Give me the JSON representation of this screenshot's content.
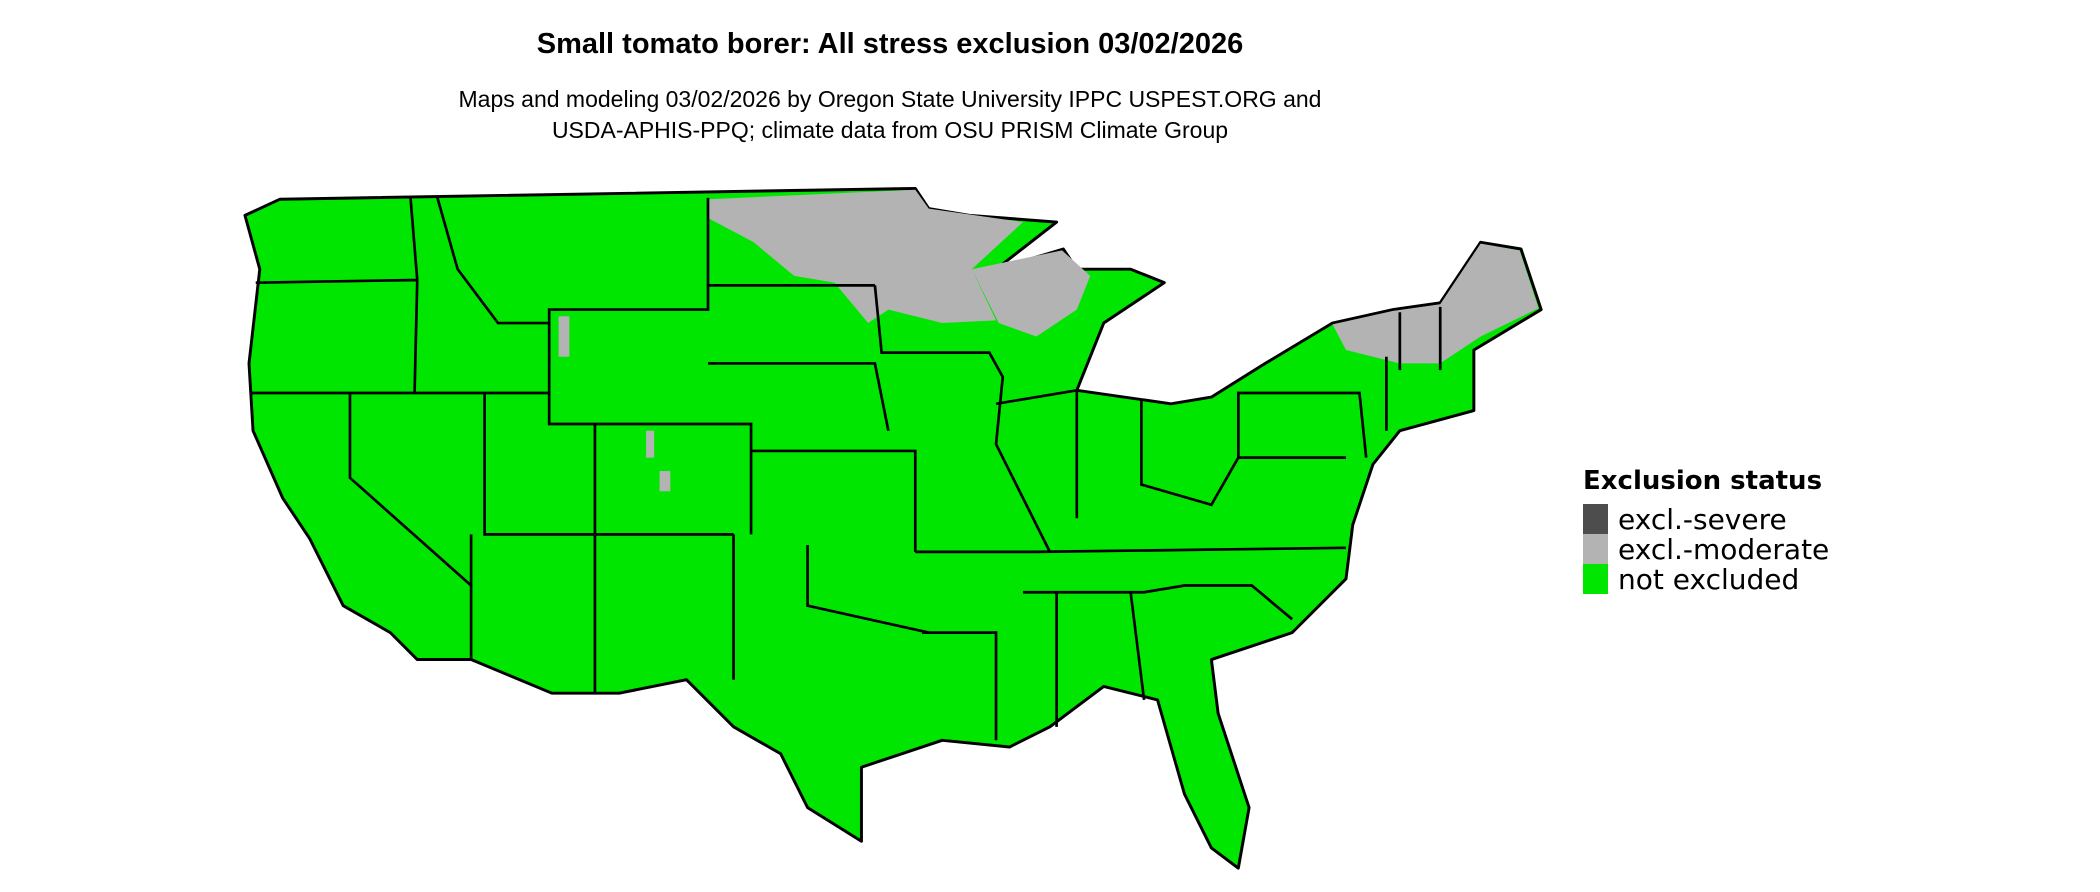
{
  "title": "Small tomato borer: All stress exclusion 03/02/2026",
  "subtitle_line1": "Maps and modeling 03/02/2026 by Oregon State University IPPC USPEST.ORG and",
  "subtitle_line2": "USDA-APHIS-PPQ; climate data from OSU PRISM Climate Group",
  "legend": {
    "title": "Exclusion status",
    "items": [
      {
        "label": "excl.-severe",
        "color": "#4d4d4d"
      },
      {
        "label": "excl.-moderate",
        "color": "#b3b3b3"
      },
      {
        "label": "not excluded",
        "color": "#00e600"
      }
    ]
  },
  "colors": {
    "not_excluded": "#00e600",
    "moderate": "#b3b3b3",
    "severe": "#4d4d4d",
    "borders": "#000000"
  }
}
